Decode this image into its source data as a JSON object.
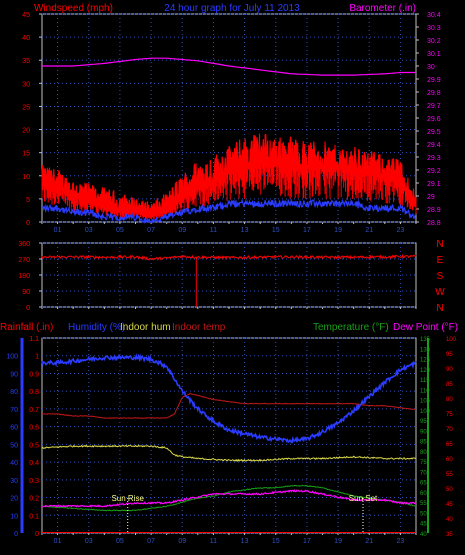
{
  "colors": {
    "bg": "#000000",
    "frame": "#c0c0c0",
    "grid": "#3050c0",
    "red": "#ff0000",
    "blue": "#2a3cff",
    "magenta": "#ff00ff",
    "darkred": "#c01818",
    "yellow": "#d8d84a",
    "green": "#18a018",
    "white": "#ffffff",
    "darkblue": "#2020c0"
  },
  "chart_data": [
    {
      "type": "line",
      "title": "24 hour graph for  July 11 2013",
      "ylabel": "Windspeed (mph)",
      "y2label": "Barometer (.in)",
      "ylim": [
        0,
        45
      ],
      "y2lim": [
        28.8,
        30.4
      ],
      "yticks": [
        "0",
        "5",
        "10",
        "15",
        "20",
        "25",
        "30",
        "35",
        "40",
        "45"
      ],
      "y2ticks": [
        "28.8",
        "28.9",
        "29",
        "29.1",
        "29.2",
        "29.3",
        "29.4",
        "29.5",
        "29.6",
        "29.7",
        "29.8",
        "29.9",
        "30",
        "30.1",
        "30.2",
        "30.3",
        "30.4"
      ],
      "xticks": [
        "01",
        "03",
        "05",
        "07",
        "09",
        "11",
        "13",
        "15",
        "17",
        "19",
        "21",
        "23"
      ],
      "grid": true,
      "series": [
        {
          "name": "Windspeed (mph)",
          "color": "#ff0000",
          "axis": "left",
          "x": [
            0,
            1,
            2,
            3,
            4,
            5,
            6,
            7,
            8,
            9,
            10,
            11,
            12,
            13,
            14,
            15,
            16,
            17,
            18,
            19,
            20,
            21,
            22,
            23,
            24
          ],
          "values": [
            8,
            7,
            5,
            4,
            3,
            2,
            2,
            1,
            2,
            5,
            7,
            8,
            10,
            11,
            12,
            12,
            11,
            11,
            11,
            11,
            10,
            10,
            9,
            8,
            3
          ]
        },
        {
          "name": "Wind gust",
          "color": "#ff0000",
          "axis": "left",
          "x": [
            0,
            1,
            2,
            3,
            4,
            5,
            6,
            7,
            8,
            9,
            10,
            11,
            12,
            13,
            14,
            15,
            16,
            17,
            18,
            19,
            20,
            21,
            22,
            23,
            24
          ],
          "values": [
            12,
            11,
            9,
            8,
            7,
            6,
            5,
            4,
            6,
            10,
            13,
            14,
            16,
            18,
            19,
            18,
            18,
            17,
            17,
            16,
            16,
            15,
            14,
            13,
            6
          ]
        },
        {
          "name": "Average wind",
          "color": "#2a3cff",
          "axis": "left",
          "x": [
            0,
            1,
            2,
            3,
            4,
            5,
            6,
            7,
            8,
            9,
            10,
            11,
            12,
            13,
            14,
            15,
            16,
            17,
            18,
            19,
            20,
            21,
            22,
            23,
            24
          ],
          "values": [
            3,
            3,
            2,
            2,
            1,
            1,
            1,
            0,
            1,
            2,
            3,
            3,
            4,
            4,
            4,
            4,
            4,
            4,
            4,
            4,
            4,
            3,
            3,
            3,
            1
          ]
        },
        {
          "name": "Barometer (.in)",
          "color": "#ff00ff",
          "axis": "right",
          "x": [
            0,
            2,
            4,
            6,
            7,
            8,
            9,
            10,
            12,
            14,
            16,
            18,
            19,
            20,
            22,
            23,
            24
          ],
          "values": [
            30.0,
            30.0,
            30.02,
            30.05,
            30.06,
            30.06,
            30.05,
            30.04,
            30.0,
            29.97,
            29.94,
            29.93,
            29.93,
            29.93,
            29.94,
            29.95,
            29.95
          ]
        }
      ]
    },
    {
      "type": "line",
      "ylabel": "",
      "ylim": [
        0,
        360
      ],
      "yticks": [
        "0",
        "90",
        "180",
        "270",
        "360"
      ],
      "y2ticks": [
        "N",
        "W",
        "S",
        "E",
        "N"
      ],
      "xticks": [
        "01",
        "03",
        "05",
        "07",
        "09",
        "11",
        "13",
        "15",
        "17",
        "19",
        "21",
        "23"
      ],
      "series": [
        {
          "name": "Wind direction",
          "color": "#ff0000",
          "x": [
            0,
            2,
            4,
            6,
            7,
            8,
            9,
            10,
            12,
            14,
            16,
            18,
            20,
            22,
            24
          ],
          "values": [
            280,
            282,
            280,
            282,
            270,
            275,
            285,
            280,
            278,
            280,
            282,
            280,
            280,
            282,
            285
          ]
        }
      ]
    },
    {
      "type": "line",
      "ylabel": "Rainfall (.in)",
      "y2label": "Temperature (°F)",
      "legend": [
        "Humidity (%)",
        "Indoor hum",
        "Indoor temp",
        "Temperature (°F)",
        "Dew Point (°F)"
      ],
      "ylim": [
        0,
        1.1
      ],
      "yticks": [
        "0",
        "0.1",
        "0.2",
        "0.3",
        "0.4",
        "0.5",
        "0.6",
        "0.7",
        "0.8",
        "0.9",
        "1",
        "1.1"
      ],
      "humidity_ticks": [
        "0",
        "10",
        "20",
        "30",
        "40",
        "50",
        "60",
        "70",
        "80",
        "90",
        "100"
      ],
      "temp_ticks": [
        "40",
        "45",
        "50",
        "55",
        "60",
        "65",
        "70",
        "75",
        "80",
        "85",
        "90",
        "95",
        "100",
        "105",
        "110",
        "115",
        "120",
        "125",
        "130",
        "135"
      ],
      "dew_ticks": [
        "35",
        "40",
        "45",
        "50",
        "55",
        "60",
        "65",
        "70",
        "75",
        "80",
        "85",
        "90",
        "95",
        "100"
      ],
      "xticks": [
        "01",
        "03",
        "05",
        "07",
        "09",
        "11",
        "13",
        "15",
        "17",
        "19",
        "21",
        "23"
      ],
      "annotations": [
        "Sun Rise",
        "Sun Set"
      ],
      "sunrise_hour": 5.5,
      "sunset_hour": 20.6,
      "series": [
        {
          "name": "Humidity (%)",
          "color": "#2a3cff",
          "x": [
            0,
            1,
            2,
            3,
            4,
            5,
            6,
            7,
            7.5,
            8,
            9,
            10,
            11,
            12,
            13,
            14,
            15,
            16,
            17,
            18,
            19,
            20,
            21,
            22,
            23,
            24
          ],
          "values": [
            96,
            96,
            97,
            98,
            99,
            99,
            99,
            98,
            96,
            94,
            80,
            70,
            63,
            58,
            56,
            54,
            53,
            52,
            53,
            57,
            62,
            69,
            77,
            85,
            92,
            96
          ]
        },
        {
          "name": "Indoor hum",
          "color": "#d8d84a",
          "x": [
            0,
            2,
            4,
            6,
            7,
            8,
            8.5,
            9,
            10,
            12,
            14,
            16,
            18,
            20,
            22,
            24
          ],
          "values": [
            48,
            49,
            49,
            49,
            49,
            48,
            44,
            43,
            42,
            41,
            41,
            42,
            42,
            43,
            42,
            42
          ]
        },
        {
          "name": "Indoor temp",
          "color": "#c01818",
          "x": [
            0,
            1,
            2,
            3,
            4,
            5,
            6,
            7,
            8,
            8.5,
            9,
            9.5,
            10,
            11,
            12,
            13,
            14,
            16,
            17,
            18,
            19,
            20,
            21,
            22,
            23,
            24
          ],
          "values": [
            98,
            98,
            97,
            97,
            96,
            96,
            96,
            96,
            96,
            98,
            106,
            108,
            107,
            105,
            104,
            103,
            103,
            103,
            103,
            103,
            103,
            103,
            102,
            102,
            101,
            100
          ]
        },
        {
          "name": "Temperature (°F)",
          "color": "#18a018",
          "x": [
            0,
            2,
            4,
            5,
            6,
            7,
            8,
            9,
            10,
            11,
            12,
            13,
            14,
            15,
            16,
            17,
            18,
            19,
            20,
            21,
            22,
            23,
            24
          ],
          "values": [
            53,
            52,
            51,
            51,
            51,
            52,
            53,
            55,
            57,
            58,
            60,
            61,
            62,
            62,
            63,
            63,
            62,
            60,
            58,
            57,
            56,
            55,
            53
          ]
        },
        {
          "name": "Dew Point (°F)",
          "color": "#ff00ff",
          "x": [
            0,
            2,
            4,
            6,
            7,
            8,
            9,
            10,
            11,
            12,
            14,
            16,
            17,
            18,
            19,
            20,
            21,
            22,
            23,
            24
          ],
          "values": [
            44,
            44,
            44,
            45,
            45,
            45,
            46,
            47,
            48,
            48,
            48,
            49,
            49,
            48,
            47,
            46,
            46,
            46,
            45,
            45
          ]
        },
        {
          "name": "Rainfall (.in)",
          "color": "#ff0000",
          "x": [
            0,
            24
          ],
          "values": [
            0,
            0
          ]
        }
      ]
    }
  ]
}
